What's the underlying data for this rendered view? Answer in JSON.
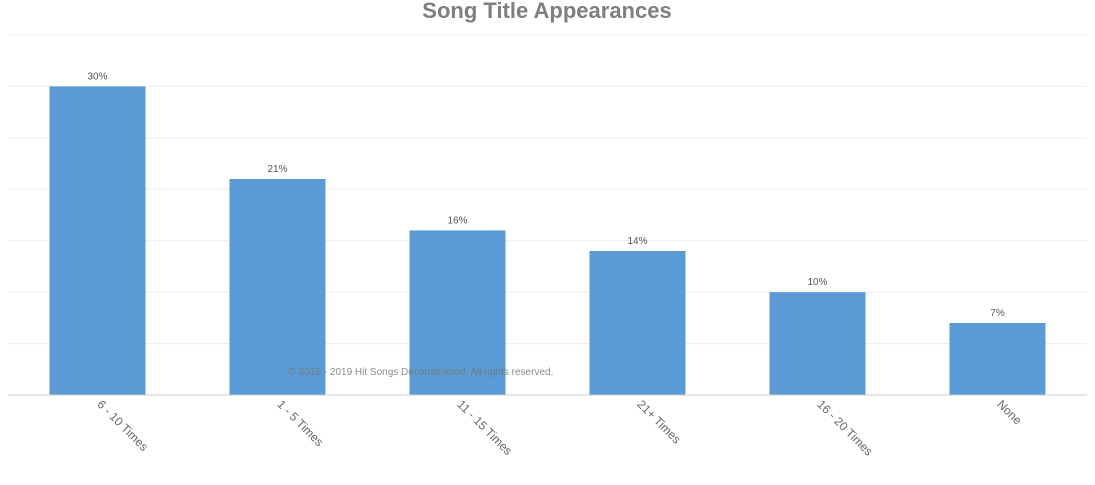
{
  "chart_data": {
    "type": "bar",
    "title": "Song Title Appearances",
    "categories": [
      "6 - 10 Times",
      "1 - 5 Times",
      "11 - 15 Times",
      "21+ Times",
      "16 - 20 Times",
      "None"
    ],
    "values": [
      30,
      21,
      16,
      14,
      10,
      7
    ],
    "data_labels": [
      "30%",
      "21%",
      "16%",
      "14%",
      "10%",
      "7%"
    ],
    "ylim": [
      0,
      35
    ],
    "grid": true,
    "y_axis_labels_shown": false,
    "bar_color": "#5b9bd5"
  },
  "footer": {
    "copyright": "© 2016 - 2019 Hit Songs Deconstructed. All rights reserved."
  },
  "colors": {
    "title": "#7f7f7f",
    "gridline": "#ececec",
    "axis": "#cccccc"
  }
}
